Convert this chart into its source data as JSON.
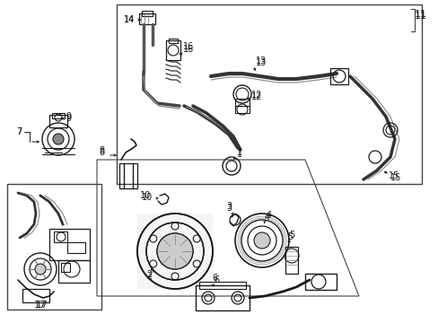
{
  "bg_color": "#ffffff",
  "line_color": "#1a1a1a",
  "fig_width": 4.89,
  "fig_height": 3.6,
  "dpi": 100,
  "image_b64": ""
}
